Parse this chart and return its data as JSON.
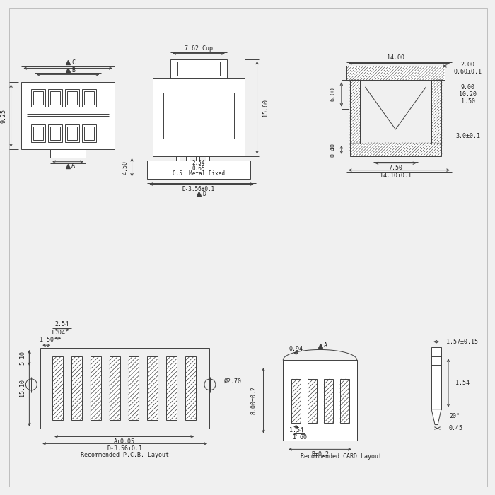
{
  "bg_color": "#f0f0f0",
  "line_color": "#404040",
  "text_color": "#202020",
  "fig_width": 7.0,
  "fig_height": 7.0,
  "labels": {
    "pcb_layout": "Recommended P.C.B. Layout",
    "card_layout": "Recommended CARD Layout",
    "dim_762_cup": "7.62 Cup",
    "dim_15_60": "15.60",
    "dim_4_50": "4.50",
    "dim_2_54": "2.54",
    "dim_0_65": "0.65",
    "dim_0_5_metal": "0.5  Metal Fixed",
    "dim_D_3_56": "D-3.56±0.1",
    "dim_D": "D",
    "dim_9_25": "9.25",
    "dim_B": "B",
    "dim_C": "C",
    "dim_A_bot": "A",
    "dim_2_00": "2.00",
    "dim_0_60": "0.60±0.1",
    "dim_14_00": "14.00",
    "dim_6_00": "6.00",
    "dim_9_00": "9.00",
    "dim_10_20": "10.20",
    "dim_1_50_right": "1.50",
    "dim_0_40": "0.40",
    "dim_7_50": "7.50",
    "dim_14_10": "14.10±0.1",
    "dim_3_0": "3.0±0.1",
    "dim_1_50_pcb": "1.50",
    "dim_1_04": "1.04",
    "dim_2_54_pcb": "2.54",
    "dim_phi_2_70": "Ø2.70",
    "dim_15_10": "15.10",
    "dim_5_10": "5.10",
    "dim_A_005": "A±0.05",
    "dim_D_356_pcb": "D-3.56±0.1",
    "dim_A_card": "A",
    "dim_0_94": "0.94",
    "dim_8_00": "8.00±0.2",
    "dim_1_54_card": "1.54",
    "dim_1_60": "1.60",
    "dim_B_card": "B±0.2",
    "dim_1_57": "1.57±0.15",
    "dim_1_54_r": "1.54",
    "dim_0_45": "0.45",
    "dim_20deg": "20°"
  }
}
